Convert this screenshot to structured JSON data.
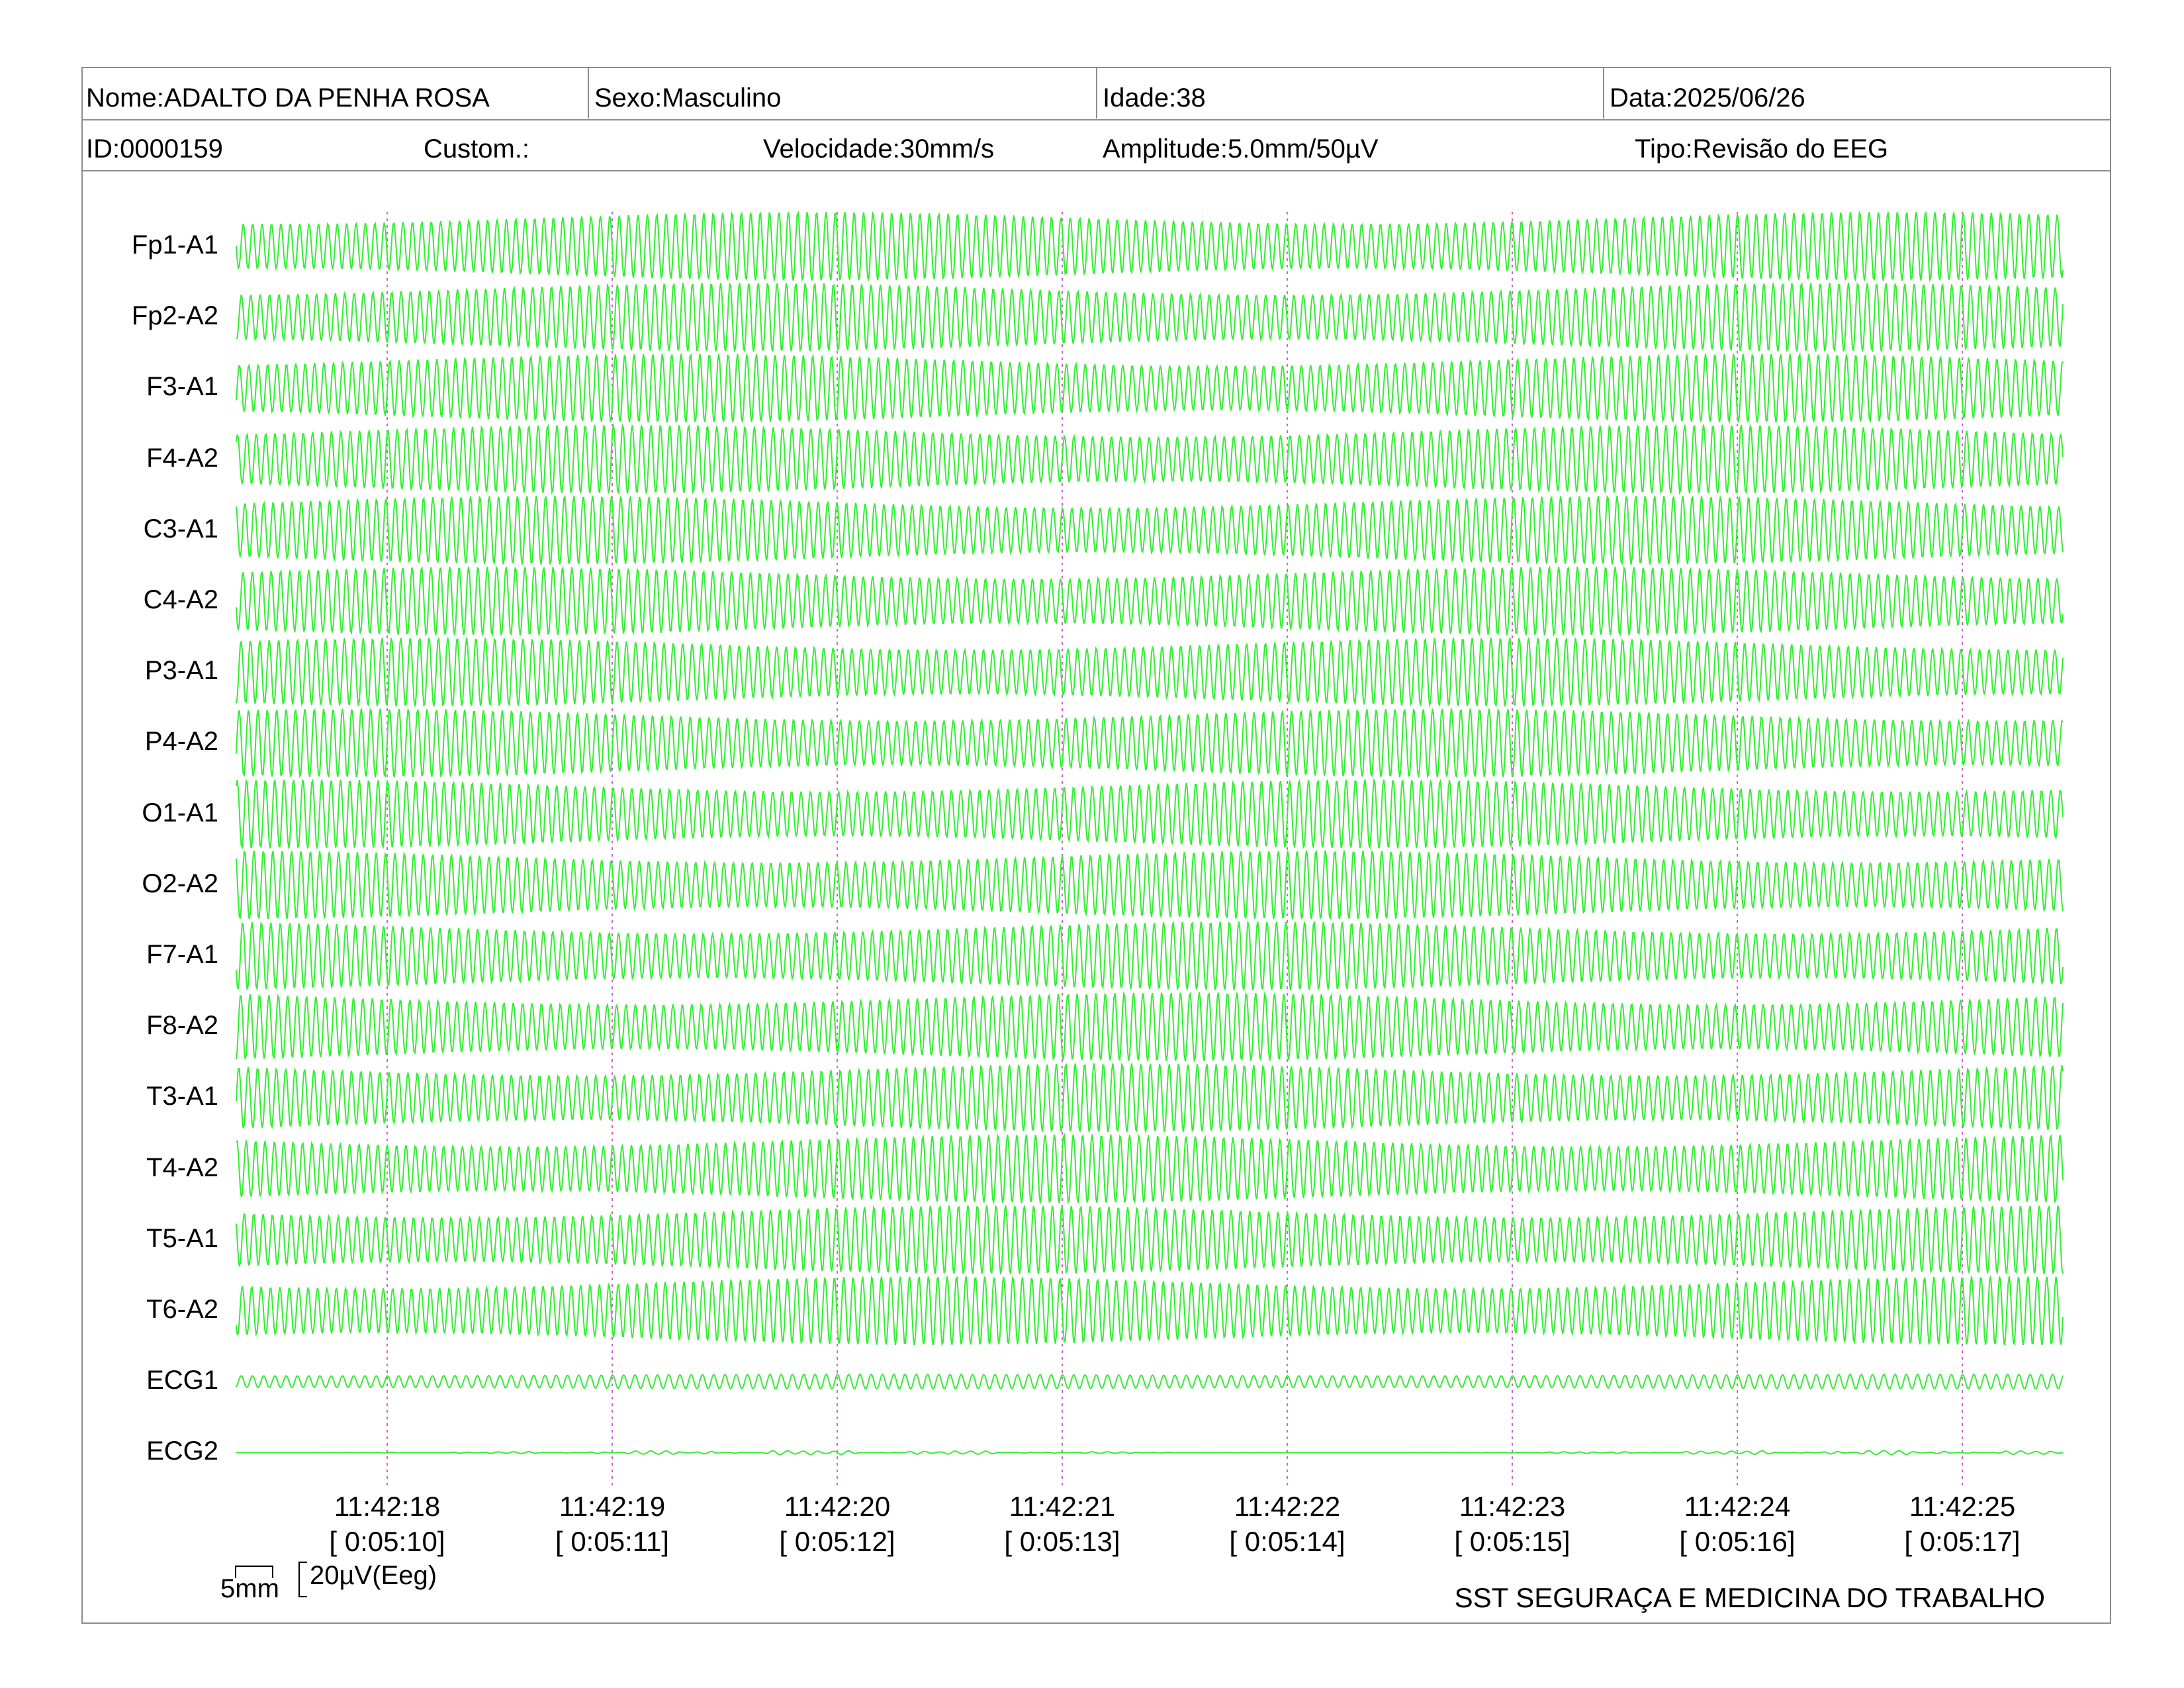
{
  "header": {
    "nome": "Nome:ADALTO DA PENHA ROSA",
    "sexo": "Sexo:Masculino",
    "idade": "Idade:38",
    "data": "Data:2025/06/26",
    "id": "ID:0000159",
    "custom": "Custom.:",
    "velocidade": "Velocidade:30mm/s",
    "amplitude": "Amplitude:5.0mm/50µV",
    "tipo": "Tipo:Revisão do EEG"
  },
  "chart_data": {
    "type": "line",
    "trace_color": "#33ee33",
    "marker_color": "#cc66cc",
    "channels": [
      "Fp1-A1",
      "Fp2-A2",
      "F3-A1",
      "F4-A2",
      "C3-A1",
      "C4-A2",
      "P3-A1",
      "P4-A2",
      "O1-A1",
      "O2-A2",
      "F7-A1",
      "F8-A2",
      "T3-A1",
      "T4-A2",
      "T5-A1",
      "T6-A2",
      "ECG1",
      "ECG2"
    ],
    "time_marks": [
      {
        "clock": "11:42:18",
        "elapsed": "[ 0:05:10]"
      },
      {
        "clock": "11:42:19",
        "elapsed": "[ 0:05:11]"
      },
      {
        "clock": "11:42:20",
        "elapsed": "[ 0:05:12]"
      },
      {
        "clock": "11:42:21",
        "elapsed": "[ 0:05:13]"
      },
      {
        "clock": "11:42:22",
        "elapsed": "[ 0:05:14]"
      },
      {
        "clock": "11:42:23",
        "elapsed": "[ 0:05:15]"
      },
      {
        "clock": "11:42:24",
        "elapsed": "[ 0:05:16]"
      },
      {
        "clock": "11:42:25",
        "elapsed": "[ 0:05:17]"
      }
    ]
  },
  "scale": {
    "time_label": "5mm",
    "amp_label": "20µV(Eeg)"
  },
  "footer": "SST SEGURAÇA E MEDICINA DO TRABALHO"
}
